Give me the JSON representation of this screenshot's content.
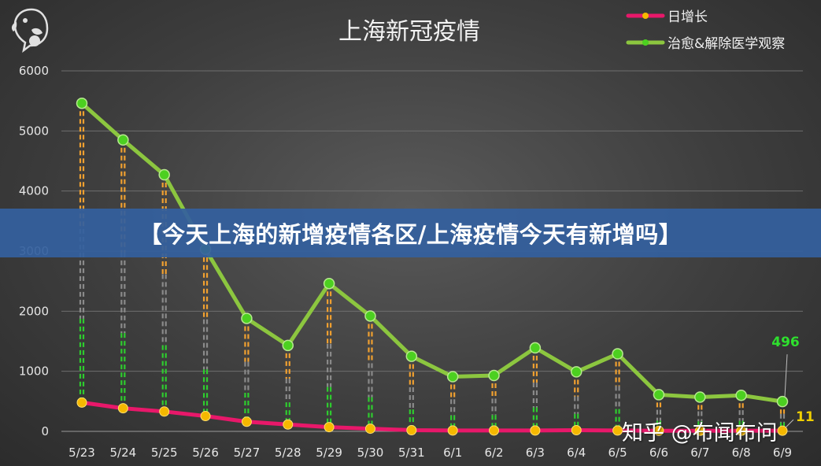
{
  "banner": {
    "text": "【今天上海的新增疫情各区/上海疫情今天有新增吗】"
  },
  "watermark": {
    "text": "知乎 @布闻布问"
  },
  "colors": {
    "recovered": "#8cc63f",
    "recovered_marker": "#4cd020",
    "daily": "#e8186a",
    "daily_marker": "#f5b800",
    "drop_recovered": "#2ecc2e",
    "drop_daily": "#f0a030",
    "drop_gray": "#8a8a8a",
    "label_green": "#2ee02e",
    "label_yellow": "#f0d000"
  },
  "chart_data": {
    "type": "line",
    "title": "上海新冠疫情",
    "categories": [
      "5/23",
      "5/24",
      "5/25",
      "5/26",
      "5/27",
      "5/28",
      "5/29",
      "5/30",
      "5/31",
      "6/1",
      "6/2",
      "6/3",
      "6/4",
      "6/5",
      "6/6",
      "6/7",
      "6/8",
      "6/9"
    ],
    "ylim": [
      0,
      6000
    ],
    "yticks": [
      "0",
      "1000",
      "2000",
      "3000",
      "4000",
      "5000",
      "6000"
    ],
    "grid": true,
    "legend_position": "top-right",
    "series": [
      {
        "name": "日增长",
        "values": [
          480,
          385,
          330,
          255,
          160,
          115,
          70,
          45,
          20,
          15,
          15,
          15,
          20,
          15,
          10,
          10,
          10,
          11
        ]
      },
      {
        "name": "治愈&解除医学观察",
        "values": [
          5460,
          4850,
          4270,
          3030,
          1880,
          1430,
          2460,
          1920,
          1250,
          910,
          930,
          1390,
          990,
          1290,
          610,
          570,
          600,
          496
        ]
      }
    ],
    "data_labels": [
      {
        "series": 1,
        "index": 17,
        "text": "496"
      },
      {
        "series": 0,
        "index": 17,
        "text": "11"
      }
    ]
  }
}
